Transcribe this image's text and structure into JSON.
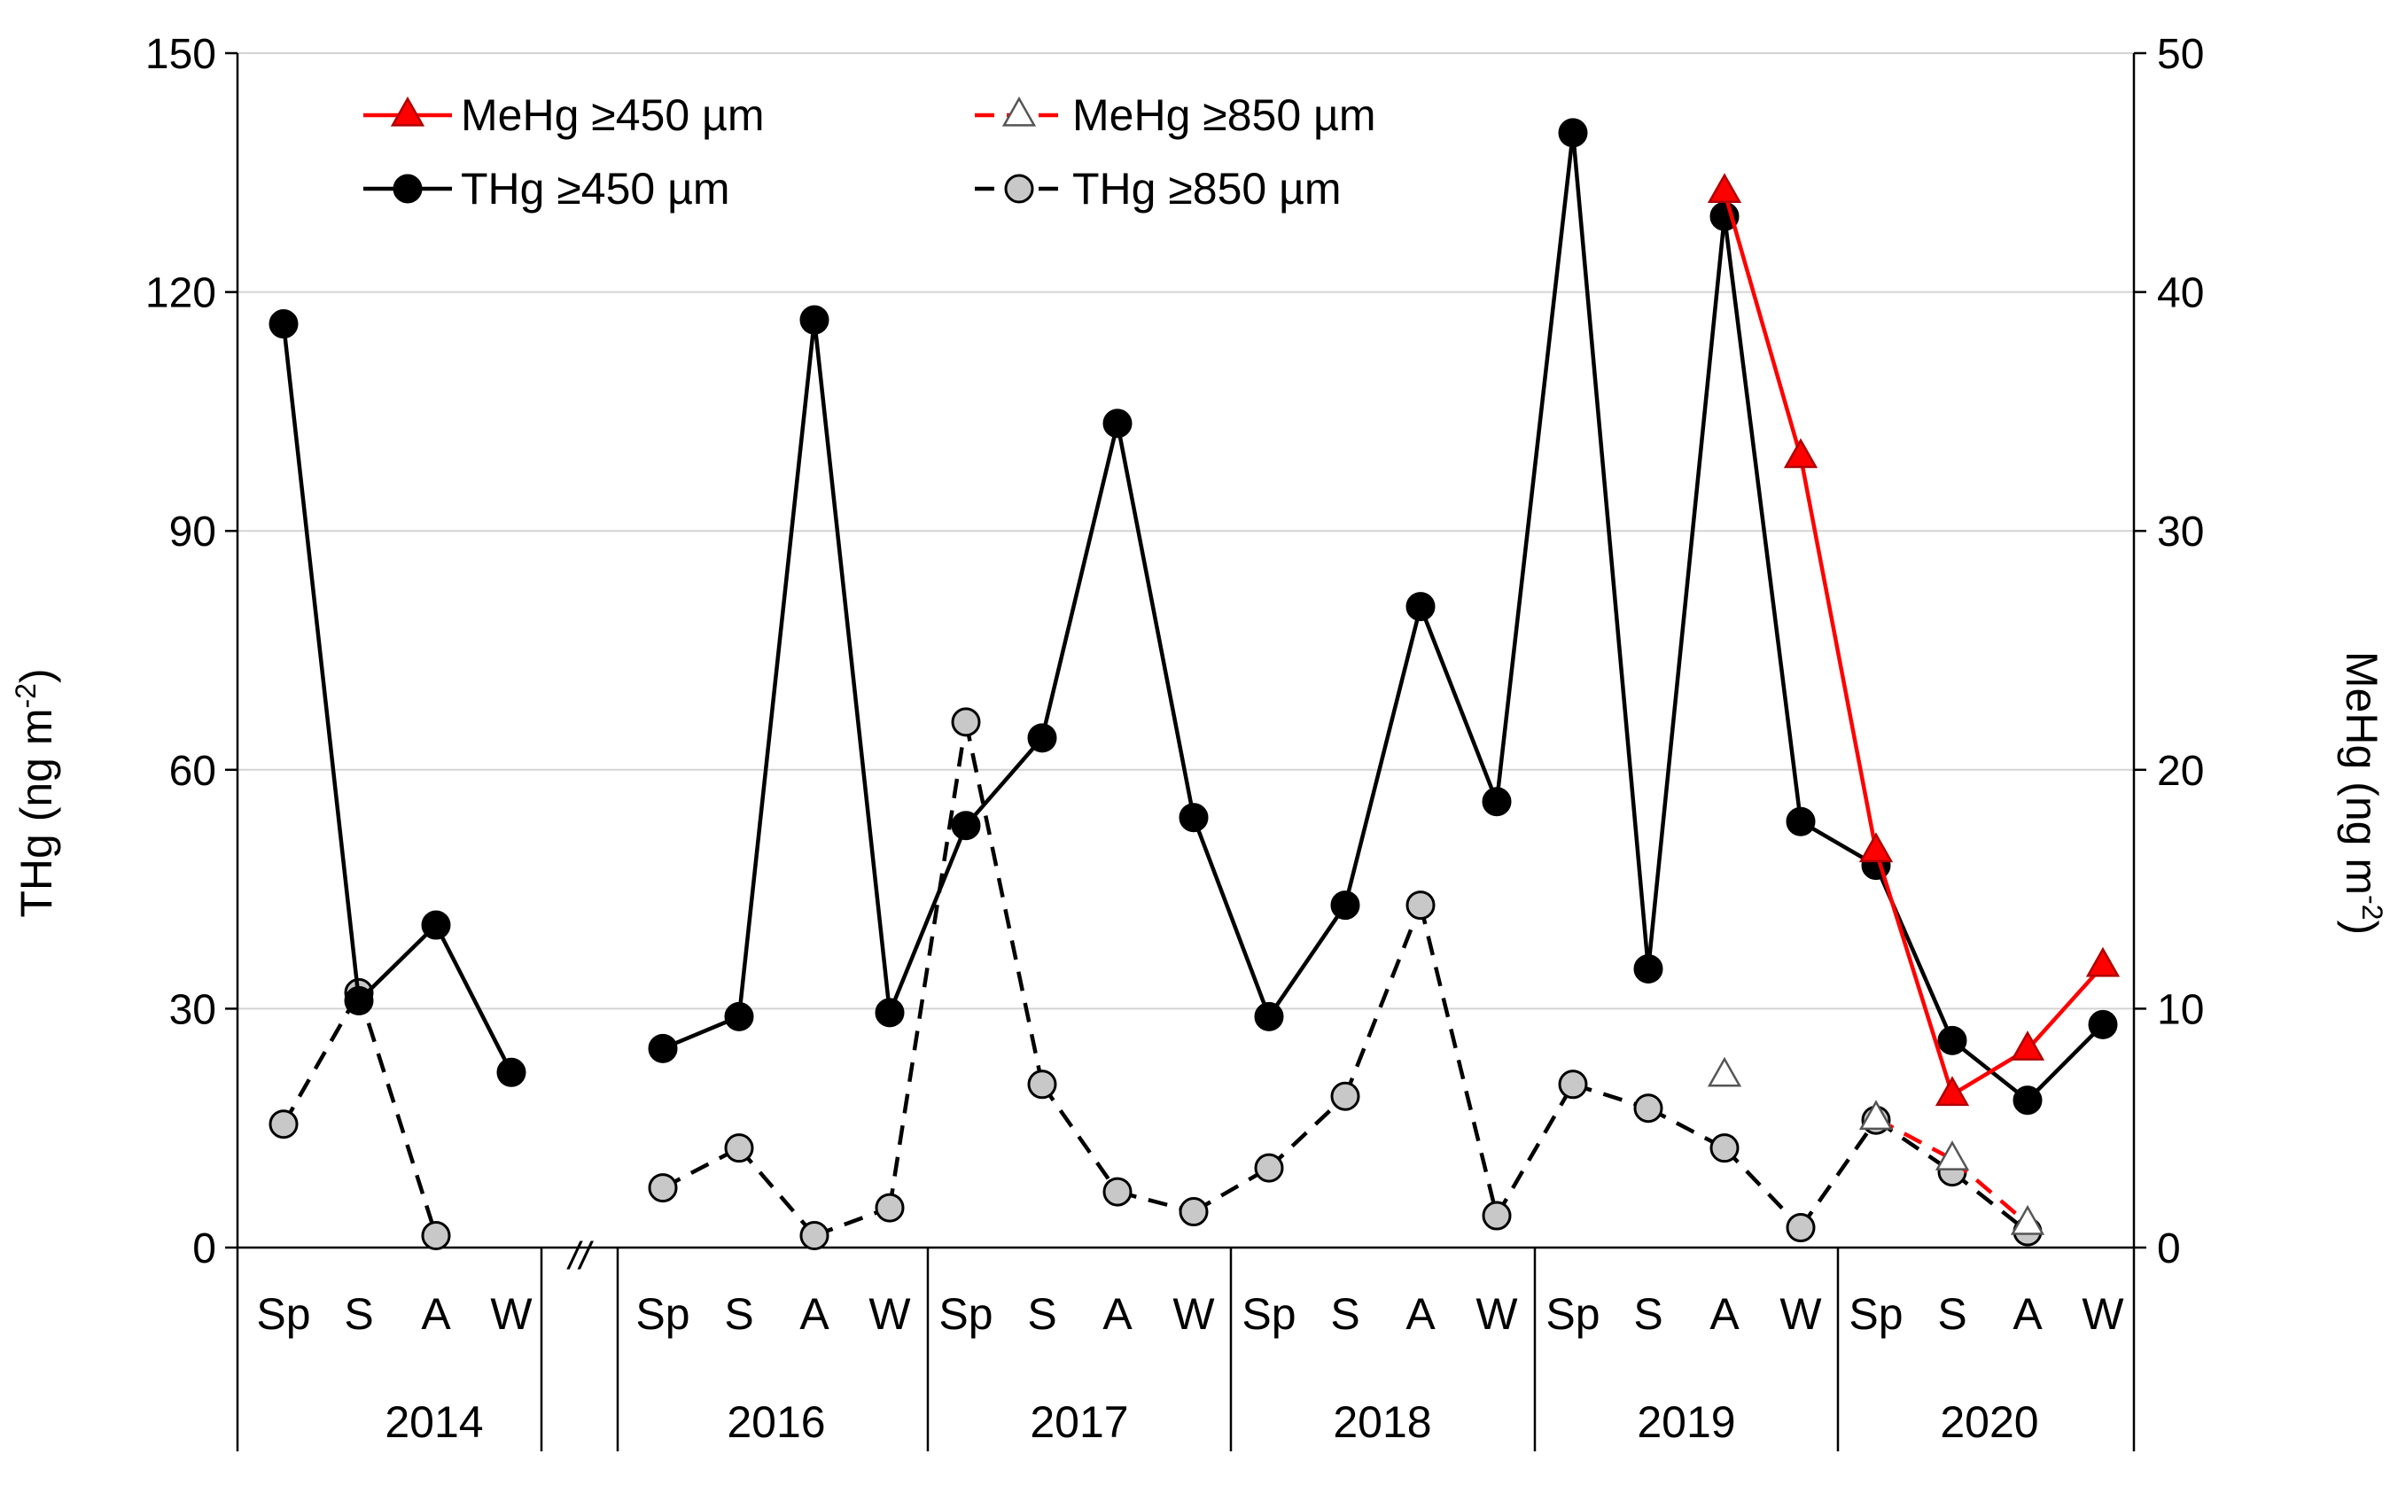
{
  "chart_data": {
    "type": "line",
    "title": "",
    "ylabel": "THg (ng m",
    "ylabel_sup": "-2",
    "ylabel_close": ")",
    "y2label": "MeHg (ng m",
    "y2label_sup": "-2",
    "y2label_close": ")",
    "ylim": [
      0,
      150
    ],
    "y2lim": [
      0,
      50
    ],
    "yticks": [
      0,
      30,
      60,
      90,
      120,
      150
    ],
    "y2ticks": [
      0,
      10,
      20,
      30,
      40,
      50
    ],
    "ytick_labels": [
      "0",
      "30",
      "60",
      "90",
      "120",
      "150"
    ],
    "y2tick_labels": [
      "0",
      "10",
      "20",
      "30",
      "40",
      "50"
    ],
    "grid": true,
    "axis_break_label": "//",
    "legend_position": "top-left",
    "categories": [
      "Sp",
      "S",
      "A",
      "W",
      "Sp",
      "S",
      "A",
      "W",
      "Sp",
      "S",
      "A",
      "W",
      "Sp",
      "S",
      "A",
      "W",
      "Sp",
      "S",
      "A",
      "W",
      "Sp",
      "S",
      "A",
      "W"
    ],
    "years": [
      "2014",
      "2016",
      "2017",
      "2018",
      "2019",
      "2020"
    ],
    "series": [
      {
        "name": "THg ≥450 µm",
        "axis": "left",
        "color": "#000000",
        "marker": "circle",
        "marker_fill": "#000000",
        "dashed": false,
        "values": [
          116,
          31,
          40.5,
          22,
          25,
          29,
          116.5,
          29.5,
          53,
          64,
          103.5,
          54,
          29,
          43,
          80.5,
          56,
          140,
          35,
          129.5,
          53.5,
          48,
          26,
          18.5,
          28
        ]
      },
      {
        "name": "THg ≥850 µm",
        "axis": "left",
        "color": "#000000",
        "marker": "circle",
        "marker_fill": "#c8c8c8",
        "dashed": true,
        "values": [
          15.5,
          32,
          1.5,
          null,
          7.5,
          12.5,
          1.5,
          5,
          66,
          20.5,
          7,
          4.5,
          10,
          19,
          43,
          4,
          20.5,
          17.5,
          12.5,
          2.5,
          16,
          9.5,
          2,
          null
        ]
      },
      {
        "name": "MeHg ≥450 µm",
        "axis": "right",
        "color": "#ff0000",
        "marker": "triangle",
        "marker_fill": "#ff0000",
        "dashed": false,
        "values": [
          null,
          null,
          null,
          null,
          null,
          null,
          null,
          null,
          null,
          null,
          null,
          null,
          null,
          null,
          null,
          null,
          null,
          null,
          44.2,
          33.1,
          16.6,
          6.4,
          8.3,
          11.8
        ]
      },
      {
        "name": "MeHg ≥850 µm",
        "axis": "right",
        "color": "#ff0000",
        "marker": "triangle",
        "marker_fill": "#ffffff",
        "dashed": true,
        "values": [
          null,
          null,
          null,
          null,
          null,
          null,
          null,
          null,
          null,
          null,
          null,
          null,
          null,
          null,
          null,
          null,
          null,
          null,
          7.2,
          null,
          5.4,
          3.7,
          1.0,
          null
        ]
      }
    ],
    "legend": [
      {
        "label": "MeHg ≥450 µm",
        "series": 2
      },
      {
        "label": "MeHg ≥850 µm",
        "series": 3
      },
      {
        "label": "THg ≥450 µm",
        "series": 0
      },
      {
        "label": "THg ≥850 µm",
        "series": 1
      }
    ]
  }
}
